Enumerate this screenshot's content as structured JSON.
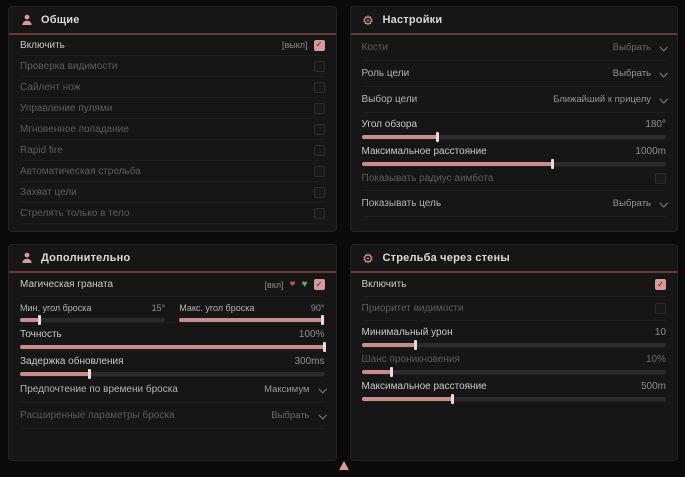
{
  "cursor": {
    "shape": "up-triangle",
    "color": "#d79a9a"
  },
  "accent": {
    "pink": "#d79a9a",
    "slider_fill": "#c98b8b",
    "header_line": "#6b3838"
  },
  "panels": [
    {
      "id": "general",
      "title": "Общие",
      "icon": "person-icon",
      "rows": [
        {
          "type": "toggle",
          "label": "Включить",
          "keybind": "[выкл]",
          "checked": true,
          "dim": false,
          "bright": true
        },
        {
          "type": "toggle",
          "label": "Проверка видимости",
          "checked": false,
          "dim": true
        },
        {
          "type": "toggle",
          "label": "Сайлент нож",
          "checked": false,
          "dim": true
        },
        {
          "type": "toggle",
          "label": "Управление пулями",
          "checked": false,
          "dim": true
        },
        {
          "type": "toggle",
          "label": "Мгновенное попадание",
          "checked": false,
          "dim": true
        },
        {
          "type": "toggle",
          "label": "Rapid fire",
          "checked": false,
          "dim": true
        },
        {
          "type": "toggle",
          "label": "Автоматическая стрельба",
          "checked": false,
          "dim": true
        },
        {
          "type": "toggle",
          "label": "Захват цели",
          "checked": false,
          "dim": true
        },
        {
          "type": "toggle",
          "label": "Стрелять только в тело",
          "checked": false,
          "dim": true
        }
      ]
    },
    {
      "id": "settings",
      "title": "Настройки",
      "icon": "gear-icon",
      "rows": [
        {
          "type": "dropdown",
          "label": "Кости",
          "value": "Выбрать",
          "dim": true
        },
        {
          "type": "dropdown",
          "label": "Роль цели",
          "value": "Выбрать",
          "dim": false
        },
        {
          "type": "dropdown",
          "label": "Выбор цели",
          "value": "Ближайший к прицелу",
          "dim": false
        },
        {
          "type": "slider",
          "label": "Угол обзора",
          "value": "180°",
          "fill": 25,
          "bright": true
        },
        {
          "type": "slider",
          "label": "Максимальное расстояние",
          "value": "1000m",
          "fill": 63,
          "bright": true
        },
        {
          "type": "toggle",
          "label": "Показывать радиус аимбота",
          "checked": false,
          "dim": true
        },
        {
          "type": "dropdown",
          "label": "Показывать цель",
          "value": "Выбрать",
          "dim": false
        }
      ]
    },
    {
      "id": "additional",
      "title": "Дополнительно",
      "icon": "person-icon",
      "rows": [
        {
          "type": "toggle-icons",
          "label": "Магическая граната",
          "keybind": "[вкл]",
          "icons": [
            "heart-red-icon",
            "heart-green-icon"
          ],
          "checked": true,
          "bright": true
        },
        {
          "type": "slider-pair",
          "sliders": [
            {
              "label": "Мин. угол броска",
              "value": "15°",
              "fill": 14
            },
            {
              "label": "Макс. угол броска",
              "value": "90°",
              "fill": 99
            }
          ]
        },
        {
          "type": "slider",
          "label": "Точность",
          "value": "100%",
          "fill": 100,
          "bright": true
        },
        {
          "type": "slider",
          "label": "Задержка обновления",
          "value": "300ms",
          "fill": 23,
          "bright": true
        },
        {
          "type": "dropdown",
          "label": "Предпочтение по времени броска",
          "value": "Максимум",
          "dim": false
        },
        {
          "type": "dropdown",
          "label": "Расширенные параметры броска",
          "value": "Выбрать",
          "dim": true
        }
      ]
    },
    {
      "id": "wallbang",
      "title": "Стрельба через стены",
      "icon": "gear-icon",
      "rows": [
        {
          "type": "toggle",
          "label": "Включить",
          "checked": true,
          "dim": false,
          "bright": true
        },
        {
          "type": "toggle",
          "label": "Приоритет видимости",
          "checked": false,
          "dim": true
        },
        {
          "type": "slider",
          "label": "Минимальный урон",
          "value": "10",
          "fill": 18,
          "bright": true
        },
        {
          "type": "slider",
          "label": "Шанс проникновения",
          "value": "10%",
          "fill": 10,
          "dim": true
        },
        {
          "type": "slider",
          "label": "Максимальное расстояние",
          "value": "500m",
          "fill": 30,
          "bright": true
        }
      ]
    }
  ]
}
